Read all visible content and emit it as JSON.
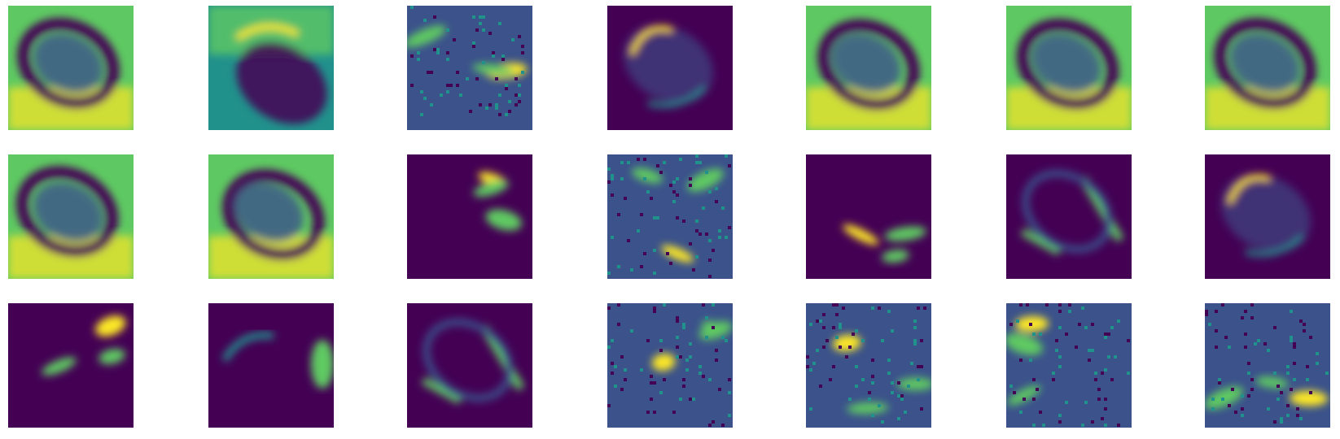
{
  "figure": {
    "rows": 3,
    "columns": 7,
    "colormap": "viridis",
    "colors": {
      "dark": "#440154",
      "blue": "#3b528b",
      "teal": "#21918c",
      "green": "#5ec962",
      "yellow": "#fde725"
    },
    "tiles": [
      {
        "content": "feature-map",
        "tone": "bright"
      },
      {
        "content": "feature-map",
        "tone": "gradient"
      },
      {
        "content": "feature-map",
        "tone": "noisy"
      },
      {
        "content": "feature-map",
        "tone": "dark-ring"
      },
      {
        "content": "feature-map",
        "tone": "bright"
      },
      {
        "content": "feature-map",
        "tone": "bright"
      },
      {
        "content": "feature-map",
        "tone": "bright"
      },
      {
        "content": "feature-map",
        "tone": "bright"
      },
      {
        "content": "feature-map",
        "tone": "bright"
      },
      {
        "content": "feature-map",
        "tone": "dark-spots"
      },
      {
        "content": "feature-map",
        "tone": "noisy-spots"
      },
      {
        "content": "feature-map",
        "tone": "dark-spots"
      },
      {
        "content": "feature-map",
        "tone": "dark-diagonal"
      },
      {
        "content": "feature-map",
        "tone": "dark-ring"
      },
      {
        "content": "feature-map",
        "tone": "dark-spots"
      },
      {
        "content": "feature-map",
        "tone": "dark-edge"
      },
      {
        "content": "feature-map",
        "tone": "dark-diagonal"
      },
      {
        "content": "feature-map",
        "tone": "noisy-spots"
      },
      {
        "content": "feature-map",
        "tone": "noisy-spots"
      },
      {
        "content": "feature-map",
        "tone": "noisy-spots"
      },
      {
        "content": "feature-map",
        "tone": "noisy-spots"
      }
    ]
  }
}
